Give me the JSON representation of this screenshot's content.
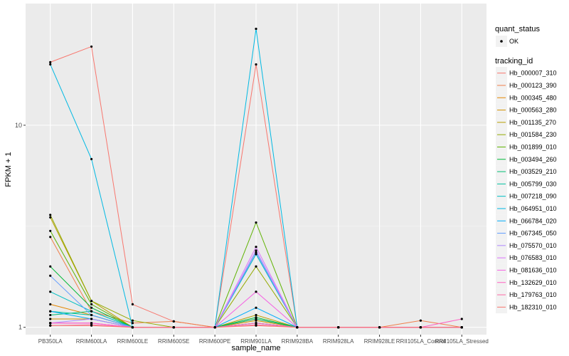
{
  "chart_data": {
    "type": "line",
    "xlabel": "sample_name",
    "ylabel": "FPKM + 1",
    "y_scale": "log10",
    "ylim": [
      0.92,
      40
    ],
    "y_ticks": [
      1,
      10
    ],
    "grid": true,
    "legend_position": "right",
    "categories": [
      "PB350LA",
      "RRIM600LA",
      "RRIM600LE",
      "RRIM600SE",
      "RRIM600PE",
      "RRIM901LA",
      "RRIM928BA",
      "RRIM928LA",
      "RRIM928LE",
      "RRII105LA_Control",
      "RRII105LA_Stressed"
    ],
    "legend_quant": {
      "title": "quant_status",
      "entries": [
        "OK"
      ]
    },
    "legend_tracking": {
      "title": "tracking_id"
    },
    "series": [
      {
        "name": "Hb_000007_310",
        "color": "#F8766D",
        "values": [
          20.5,
          24.5,
          1.3,
          1.07,
          1.0,
          20.0,
          1.0,
          1.0,
          1.0,
          1.0,
          1.0
        ]
      },
      {
        "name": "Hb_000123_390",
        "color": "#F07E4A",
        "values": [
          2.8,
          1.2,
          1.05,
          1.07,
          1.0,
          1.1,
          1.0,
          1.0,
          1.0,
          1.08,
          1.0
        ]
      },
      {
        "name": "Hb_000345_480",
        "color": "#E58700",
        "values": [
          1.3,
          1.15,
          1.0,
          1.0,
          1.0,
          1.05,
          1.0,
          1.0,
          1.0,
          1.0,
          1.0
        ]
      },
      {
        "name": "Hb_000563_280",
        "color": "#D29200",
        "values": [
          1.1,
          1.1,
          1.0,
          1.0,
          1.0,
          1.08,
          1.0,
          1.0,
          1.0,
          1.0,
          1.0
        ]
      },
      {
        "name": "Hb_001135_270",
        "color": "#B79F00",
        "values": [
          3.5,
          1.35,
          1.0,
          1.0,
          1.0,
          1.15,
          1.0,
          1.0,
          1.0,
          1.0,
          1.0
        ]
      },
      {
        "name": "Hb_001584_230",
        "color": "#93AA00",
        "values": [
          3.6,
          1.35,
          1.08,
          1.0,
          1.0,
          2.0,
          1.0,
          1.0,
          1.0,
          1.0,
          1.0
        ]
      },
      {
        "name": "Hb_001899_010",
        "color": "#5EB300",
        "values": [
          3.0,
          1.3,
          1.0,
          1.0,
          1.0,
          3.3,
          1.0,
          1.0,
          1.0,
          1.0,
          1.0
        ]
      },
      {
        "name": "Hb_003494_260",
        "color": "#00BA38",
        "values": [
          2.0,
          1.25,
          1.0,
          1.0,
          1.0,
          1.12,
          1.0,
          1.0,
          1.0,
          1.0,
          1.0
        ]
      },
      {
        "name": "Hb_003529_210",
        "color": "#00BF74",
        "values": [
          1.15,
          1.2,
          1.0,
          1.0,
          1.0,
          1.1,
          1.0,
          1.0,
          1.0,
          1.0,
          1.0
        ]
      },
      {
        "name": "Hb_005799_030",
        "color": "#00C19F",
        "values": [
          1.2,
          1.15,
          1.0,
          1.0,
          1.0,
          1.05,
          1.0,
          1.0,
          1.0,
          1.0,
          1.0
        ]
      },
      {
        "name": "Hb_007218_090",
        "color": "#00BFC4",
        "values": [
          1.5,
          1.2,
          1.0,
          1.0,
          1.0,
          2.3,
          1.0,
          1.0,
          1.0,
          1.0,
          1.0
        ]
      },
      {
        "name": "Hb_064951_010",
        "color": "#00B9E3",
        "values": [
          20.0,
          6.8,
          1.0,
          1.0,
          1.0,
          30.0,
          1.0,
          1.0,
          1.0,
          1.0,
          1.0
        ]
      },
      {
        "name": "Hb_066784_020",
        "color": "#00ADFA",
        "values": [
          1.2,
          1.1,
          1.0,
          1.0,
          1.0,
          1.25,
          1.0,
          1.0,
          1.0,
          1.0,
          1.0
        ]
      },
      {
        "name": "Hb_067345_050",
        "color": "#619CFF",
        "values": [
          1.8,
          1.15,
          1.0,
          1.0,
          1.0,
          2.35,
          1.0,
          1.0,
          1.0,
          1.0,
          1.0
        ]
      },
      {
        "name": "Hb_075570_010",
        "color": "#AE87FF",
        "values": [
          1.05,
          1.1,
          1.0,
          1.0,
          1.0,
          2.4,
          1.0,
          1.0,
          1.0,
          1.0,
          1.0
        ]
      },
      {
        "name": "Hb_076583_010",
        "color": "#DB72FB",
        "values": [
          1.05,
          1.05,
          1.0,
          1.0,
          1.0,
          2.5,
          1.0,
          1.0,
          1.0,
          1.0,
          1.0
        ]
      },
      {
        "name": "Hb_081636_010",
        "color": "#F564E3",
        "values": [
          1.05,
          1.05,
          1.0,
          1.0,
          1.0,
          1.5,
          1.0,
          1.0,
          1.0,
          1.0,
          1.0
        ]
      },
      {
        "name": "Hb_132629_010",
        "color": "#FF61C3",
        "values": [
          1.05,
          1.05,
          1.0,
          1.0,
          1.0,
          1.05,
          1.0,
          1.0,
          1.0,
          1.0,
          1.1
        ]
      },
      {
        "name": "Hb_179763_010",
        "color": "#FF67A4",
        "values": [
          1.02,
          1.03,
          1.0,
          1.0,
          1.0,
          1.03,
          1.0,
          1.0,
          1.0,
          1.0,
          1.0
        ]
      },
      {
        "name": "Hb_182310_010",
        "color": "#F8766D",
        "values": [
          1.02,
          1.02,
          1.0,
          1.0,
          1.0,
          1.02,
          1.0,
          1.0,
          1.0,
          1.0,
          1.0
        ]
      }
    ]
  }
}
